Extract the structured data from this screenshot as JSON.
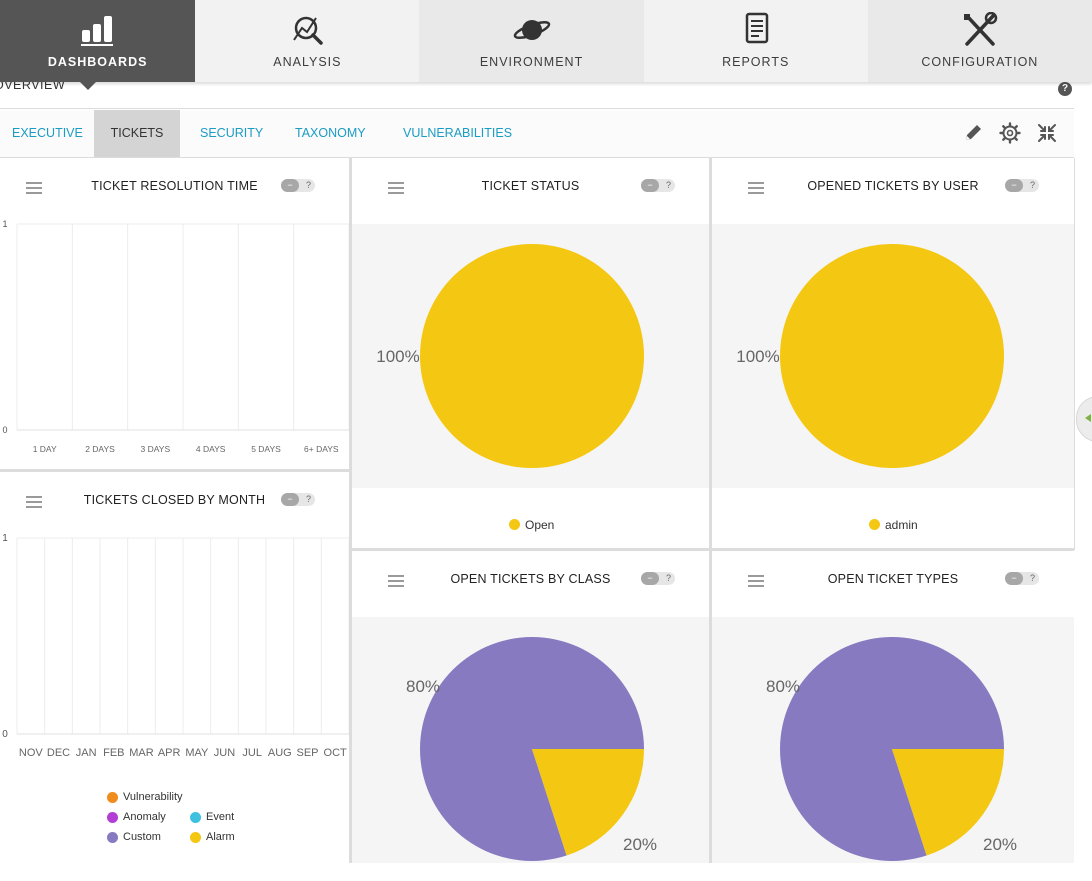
{
  "nav": {
    "items": [
      {
        "label": "DASHBOARDS",
        "icon": "bar-chart-icon",
        "active": true
      },
      {
        "label": "ANALYSIS",
        "icon": "magnifier-chart-icon"
      },
      {
        "label": "ENVIRONMENT",
        "icon": "planet-icon"
      },
      {
        "label": "REPORTS",
        "icon": "document-icon"
      },
      {
        "label": "CONFIGURATION",
        "icon": "tools-icon"
      }
    ]
  },
  "breadcrumb": {
    "label": "OVERVIEW",
    "help": "?"
  },
  "tabs": [
    {
      "label": "EXECUTIVE"
    },
    {
      "label": "TICKETS",
      "active": true
    },
    {
      "label": "SECURITY"
    },
    {
      "label": "TAXONOMY"
    },
    {
      "label": "VULNERABILITIES"
    }
  ],
  "toolbar_icons": [
    "pencil-icon",
    "gear-icon",
    "collapse-icon"
  ],
  "widget_controls": {
    "toggle_minus": "−",
    "toggle_help": "?"
  },
  "colors": {
    "accent": "#1a9cc4",
    "nav_active": "#555555",
    "yellow": "#f4c712",
    "purple": "#877ac0",
    "vulnerability": "#f08c1c",
    "anomaly": "#b33ed6",
    "event": "#3ec1e0",
    "custom": "#877ac0",
    "alarm": "#f4c712"
  },
  "widgets": {
    "resolution": {
      "title": "TICKET RESOLUTION TIME",
      "chart_data": {
        "type": "bar",
        "categories": [
          "1 DAY",
          "2 DAYS",
          "3 DAYS",
          "4 DAYS",
          "5 DAYS",
          "6+ DAYS"
        ],
        "values": [
          0,
          0,
          0,
          0,
          0,
          0
        ],
        "ylim": [
          0,
          1
        ],
        "yticks": [
          "0",
          "1"
        ]
      }
    },
    "closed_by_month": {
      "title": "TICKETS CLOSED BY MONTH",
      "chart_data": {
        "type": "bar",
        "categories": [
          "NOV",
          "DEC",
          "JAN",
          "FEB",
          "MAR",
          "APR",
          "MAY",
          "JUN",
          "JUL",
          "AUG",
          "SEP",
          "OCT"
        ],
        "values": [
          0,
          0,
          0,
          0,
          0,
          0,
          0,
          0,
          0,
          0,
          0,
          0
        ],
        "ylim": [
          0,
          1
        ],
        "yticks": [
          "0",
          "1"
        ]
      },
      "legend": [
        {
          "label": "Vulnerability",
          "color": "#f08c1c"
        },
        {
          "label": "Anomaly",
          "color": "#b33ed6"
        },
        {
          "label": "Event",
          "color": "#3ec1e0"
        },
        {
          "label": "Custom",
          "color": "#877ac0"
        },
        {
          "label": "Alarm",
          "color": "#f4c712"
        }
      ]
    },
    "status": {
      "title": "TICKET STATUS",
      "chart_data": {
        "type": "pie",
        "slices": [
          {
            "label": "Open",
            "value": 100,
            "color": "#f4c712"
          }
        ],
        "data_labels": [
          "100%"
        ]
      }
    },
    "by_user": {
      "title": "OPENED TICKETS BY USER",
      "chart_data": {
        "type": "pie",
        "slices": [
          {
            "label": "admin",
            "value": 100,
            "color": "#f4c712"
          }
        ],
        "data_labels": [
          "100%"
        ]
      }
    },
    "by_class": {
      "title": "OPEN TICKETS BY CLASS",
      "chart_data": {
        "type": "pie",
        "slices": [
          {
            "value": 80,
            "color": "#877ac0"
          },
          {
            "value": 20,
            "color": "#f4c712"
          }
        ],
        "data_labels": [
          "80%",
          "20%"
        ]
      }
    },
    "types": {
      "title": "OPEN TICKET TYPES",
      "chart_data": {
        "type": "pie",
        "slices": [
          {
            "value": 80,
            "color": "#877ac0"
          },
          {
            "value": 20,
            "color": "#f4c712"
          }
        ],
        "data_labels": [
          "80%",
          "20%"
        ]
      }
    }
  }
}
